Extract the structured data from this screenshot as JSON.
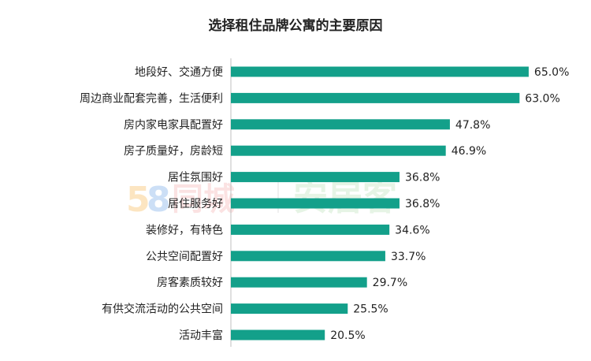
{
  "chart_data": {
    "type": "bar",
    "orientation": "horizontal",
    "title": "选择租住品牌公寓的主要原因",
    "categories": [
      "地段好、交通方便",
      "周边商业配套完善，生活便利",
      "房内家电家具配置好",
      "房子质量好，房龄短",
      "居住氛围好",
      "居住服务好",
      "装修好，有特色",
      "公共空间配置好",
      "房客素质较好",
      "有供交流活动的公共空间",
      "活动丰富"
    ],
    "values": [
      65.0,
      63.0,
      47.8,
      46.9,
      36.8,
      36.8,
      34.6,
      33.7,
      29.7,
      25.5,
      20.5
    ],
    "value_labels": [
      "65.0%",
      "63.0%",
      "47.8%",
      "46.9%",
      "36.8%",
      "36.8%",
      "34.6%",
      "33.7%",
      "29.7%",
      "25.5%",
      "20.5%"
    ],
    "xlim": [
      0,
      70
    ],
    "grid": false,
    "bar_color": "#13a08a",
    "axis_color": "#bfbfbf"
  },
  "watermark": {
    "digit_five": "5",
    "digit_eight": "8",
    "brand_a": "同城",
    "brand_b": "安居客",
    "color_five": "#f5a623",
    "color_eight": "#4a90e2",
    "color_a": "#f29b9b",
    "color_b": "#a7d8a3"
  }
}
